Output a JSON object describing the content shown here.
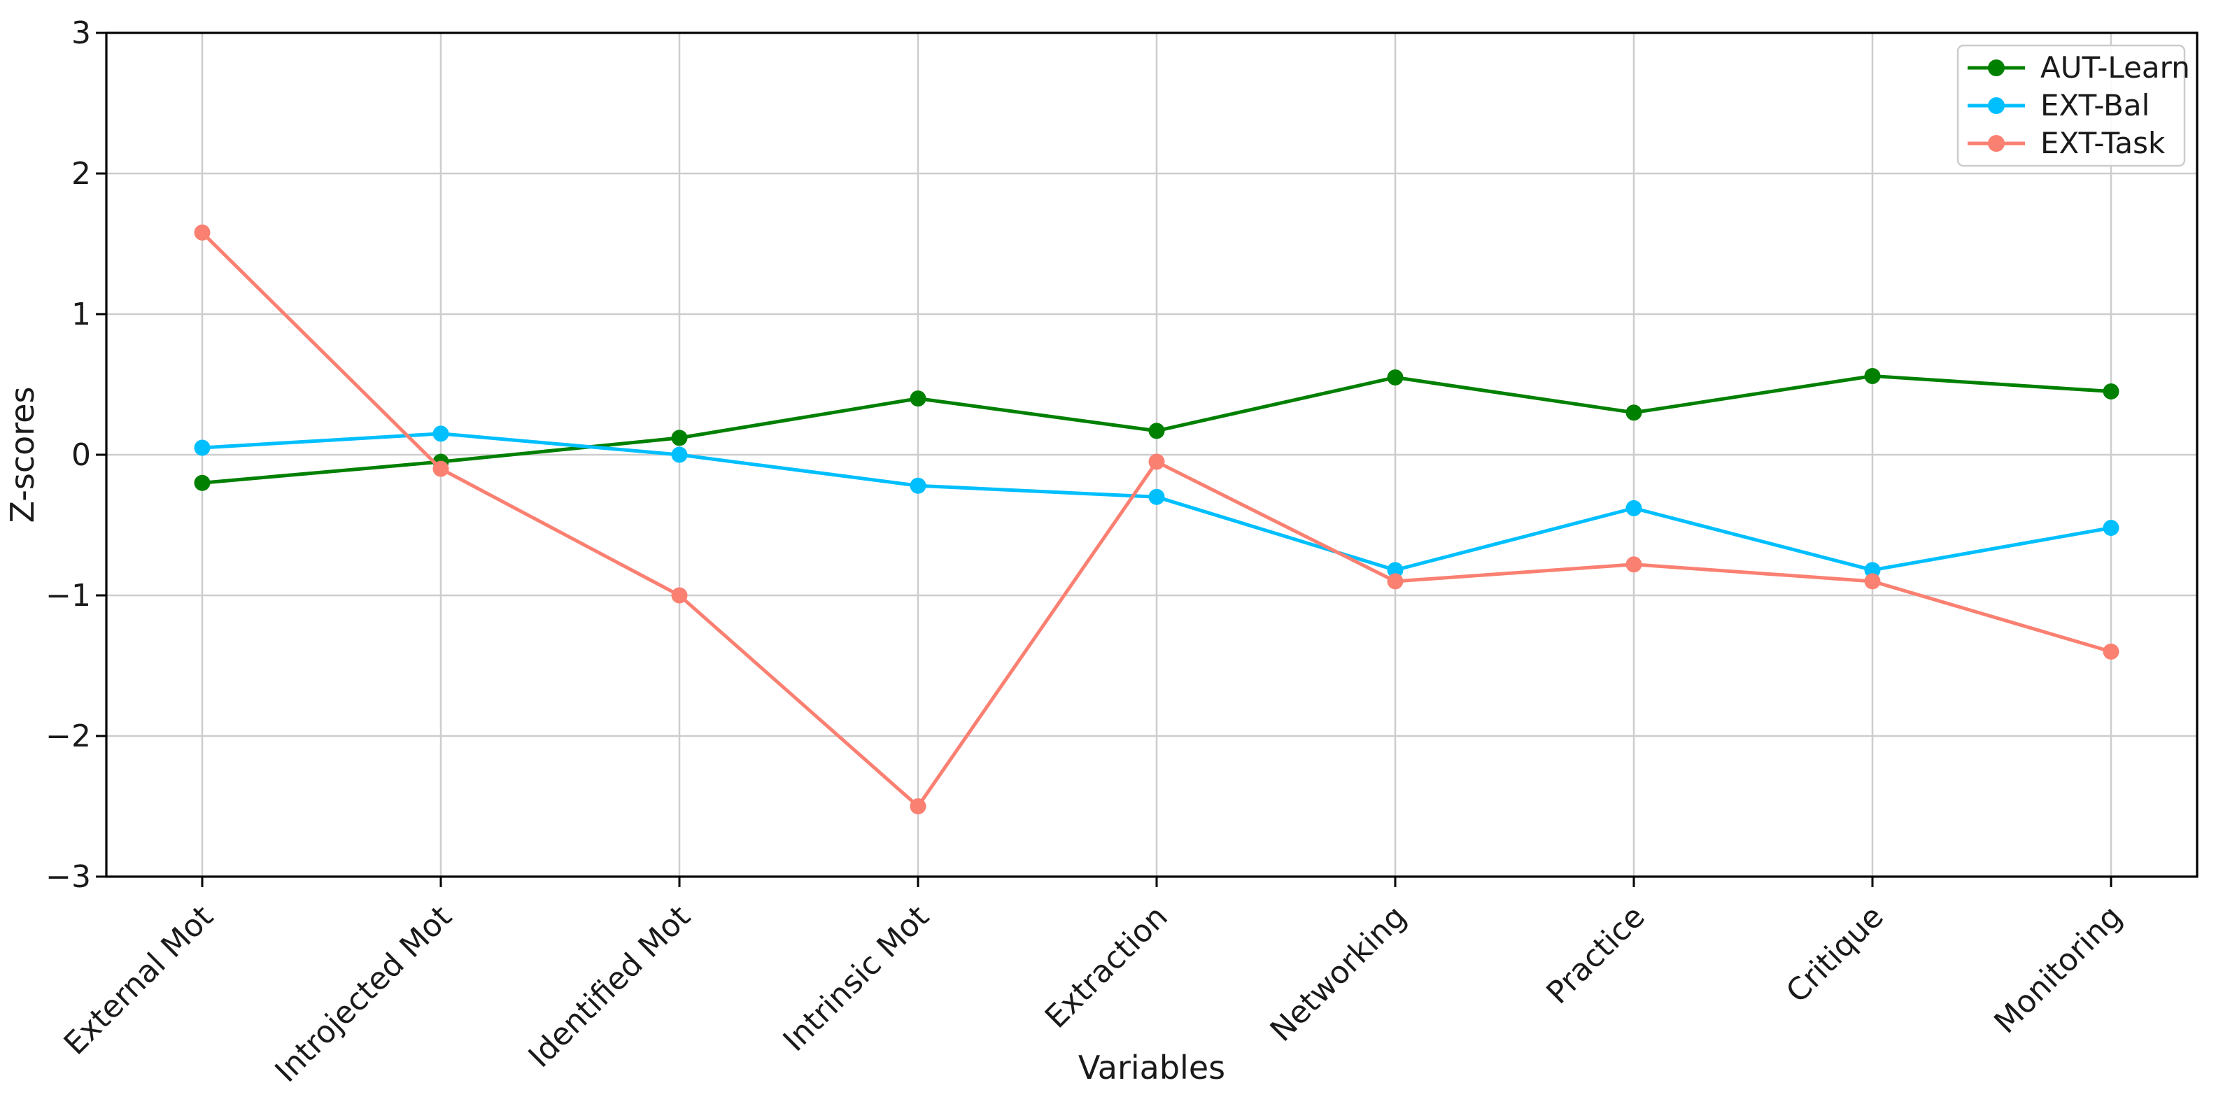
{
  "figure": {
    "background": "#ffffff",
    "text_color": "#1a1a1a",
    "grid_color": "#cdcdcd",
    "spine_color": "#000000"
  },
  "chart_data": {
    "type": "line",
    "title": "",
    "xlabel": "Variables",
    "ylabel": "Z-scores",
    "ylim": [
      -3,
      3
    ],
    "ytick_labels": [
      "3",
      "2",
      "1",
      "0",
      "−1",
      "−2",
      "−3"
    ],
    "yticks": [
      3,
      2,
      1,
      0,
      -1,
      -2,
      -3
    ],
    "grid": true,
    "legend_position": "upper right",
    "marker": "circle",
    "categories": [
      "External Mot",
      "Introjected Mot",
      "Identified Mot",
      "Intrinsic Mot",
      "Extraction",
      "Networking",
      "Practice",
      "Critique",
      "Monitoring"
    ],
    "series": [
      {
        "name": "AUT-Learn",
        "color": "#008000",
        "values": [
          -0.2,
          -0.05,
          0.12,
          0.4,
          0.17,
          0.55,
          0.3,
          0.56,
          0.45
        ]
      },
      {
        "name": "EXT-Bal",
        "color": "#00BFFF",
        "values": [
          0.05,
          0.15,
          0.0,
          -0.22,
          -0.3,
          -0.82,
          -0.38,
          -0.82,
          -0.52
        ]
      },
      {
        "name": "EXT-Task",
        "color": "#FA8072",
        "values": [
          1.58,
          -0.1,
          -1.0,
          -2.5,
          -0.05,
          -0.9,
          -0.78,
          -0.9,
          -1.4
        ]
      }
    ]
  }
}
